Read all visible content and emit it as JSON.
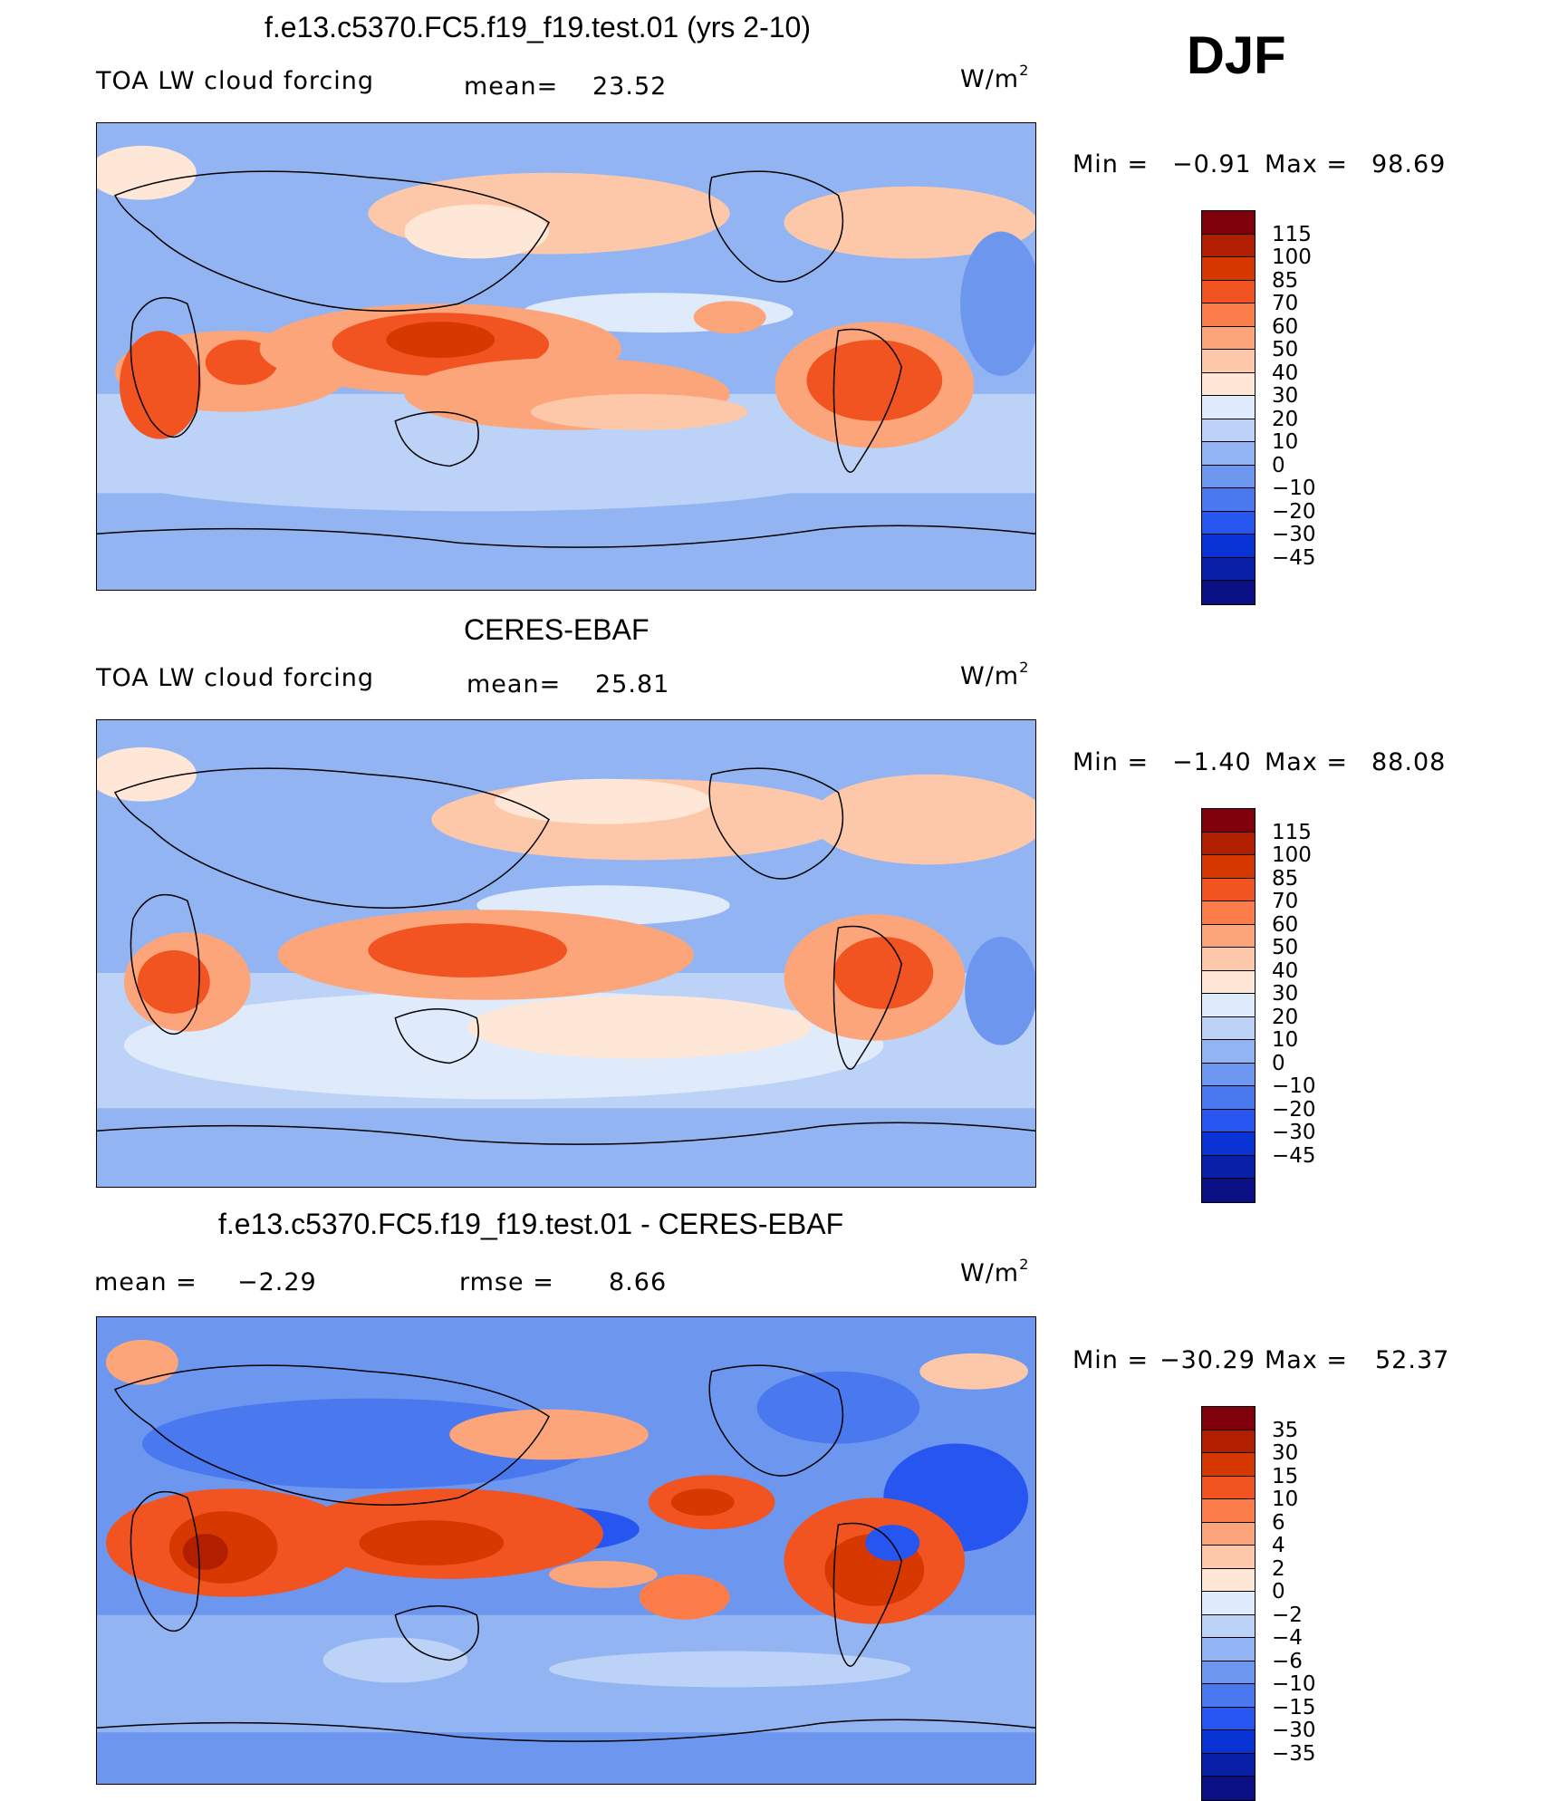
{
  "season": "DJF",
  "units_main": "W/m",
  "units_sup": "2",
  "panels": [
    {
      "title": "f.e13.c5370.FC5.f19_f19.test.01 (yrs 2-10)",
      "variable": "TOA LW cloud forcing",
      "stat_label": "mean=",
      "stat_value": "23.52",
      "min_label": "Min  =",
      "min_value": "−0.91",
      "max_label": "Max  =",
      "max_value": "98.69"
    },
    {
      "title": "CERES-EBAF",
      "variable": "TOA LW cloud forcing",
      "stat_label": "mean=",
      "stat_value": "25.81",
      "min_label": "Min  =",
      "min_value": "−1.40",
      "max_label": "Max  =",
      "max_value": "88.08"
    },
    {
      "title": "f.e13.c5370.FC5.f19_f19.test.01 - CERES-EBAF",
      "mean_label": "mean  =",
      "mean_value": "−2.29",
      "rmse_label": "rmse  =",
      "rmse_value": "8.66",
      "min_label": "Min  =",
      "min_value": "−30.29",
      "max_label": "Max  =",
      "max_value": "52.37"
    }
  ],
  "colorbar_fields": {
    "labels": [
      "115",
      "100",
      "85",
      "70",
      "60",
      "50",
      "40",
      "30",
      "20",
      "10",
      "0",
      "−10",
      "−20",
      "−30",
      "−45"
    ],
    "colors": [
      "#80000c",
      "#b21e00",
      "#d63800",
      "#f15420",
      "#fc7d4a",
      "#fca57b",
      "#fdc8aa",
      "#fee7d6",
      "#dfeafa",
      "#bcd2f7",
      "#93b4f2",
      "#6d96ef",
      "#4a78ee",
      "#2655ef",
      "#0a33d6",
      "#0a1fa8",
      "#0a0f85"
    ]
  },
  "colorbar_diff": {
    "labels": [
      "35",
      "30",
      "15",
      "10",
      "6",
      "4",
      "2",
      "0",
      "−2",
      "−4",
      "−6",
      "−10",
      "−15",
      "−30",
      "−35"
    ],
    "colors": [
      "#80000c",
      "#b21e00",
      "#d63800",
      "#f15420",
      "#fc7d4a",
      "#fca57b",
      "#fdc8aa",
      "#fee7d6",
      "#dfeafa",
      "#bcd2f7",
      "#93b4f2",
      "#6d96ef",
      "#4a78ee",
      "#2655ef",
      "#0a33d6",
      "#0a1fa8",
      "#0a0f85"
    ]
  }
}
